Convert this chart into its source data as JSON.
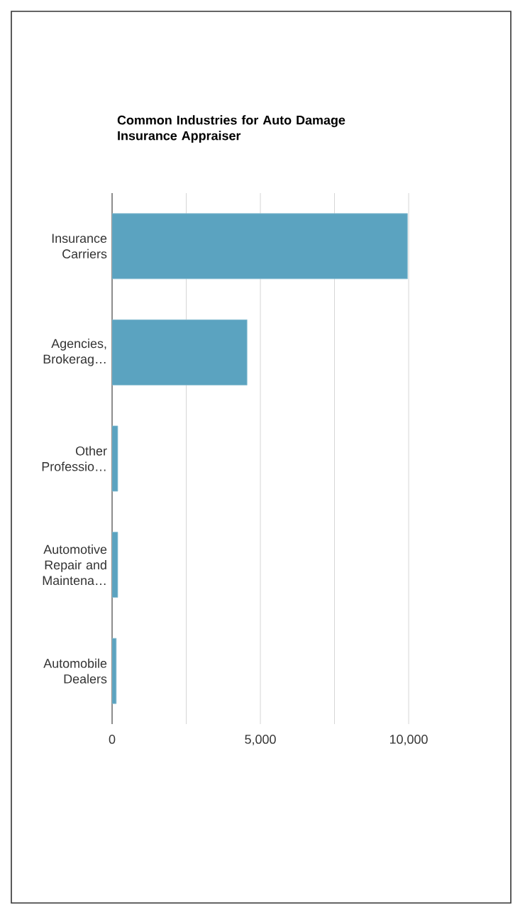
{
  "chart_data": {
    "type": "bar",
    "orientation": "horizontal",
    "title": "Common Industries for Auto Damage Insurance Appraiser",
    "categories": [
      "Insurance Carriers",
      "Agencies, Brokerag…",
      "Other Professio…",
      "Automotive Repair and Maintena…",
      "Automobile Dealers"
    ],
    "values": [
      9960,
      4550,
      190,
      190,
      140
    ],
    "color": "#5ba3c0",
    "xlim": [
      0,
      10000
    ],
    "xticks": [
      0,
      {
        "value": 2500,
        "label": null
      },
      {
        "value": 5000,
        "label": "5,000"
      },
      {
        "value": 7500,
        "label": null
      },
      {
        "value": 10000,
        "label": "10,000"
      }
    ],
    "grid": "x"
  }
}
